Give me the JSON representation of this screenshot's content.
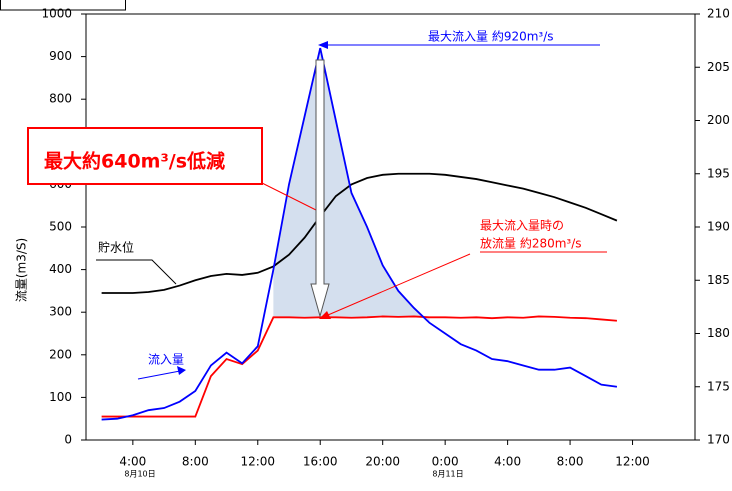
{
  "chart_data": {
    "type": "line",
    "y_label": "流量(m3/S)",
    "x": [
      2,
      3,
      4,
      5,
      6,
      7,
      8,
      9,
      10,
      11,
      12,
      13,
      14,
      15,
      16,
      17,
      18,
      19,
      20,
      21,
      22,
      23,
      24,
      25,
      26,
      27,
      28,
      29,
      30,
      31,
      32,
      33,
      34,
      35
    ],
    "xlim": [
      1,
      40
    ],
    "xticks": [
      {
        "value": 4,
        "label": "4:00"
      },
      {
        "value": 8,
        "label": "8:00"
      },
      {
        "value": 12,
        "label": "12:00"
      },
      {
        "value": 16,
        "label": "16:00"
      },
      {
        "value": 20,
        "label": "20:00"
      },
      {
        "value": 24,
        "label": "0:00"
      },
      {
        "value": 28,
        "label": "4:00"
      },
      {
        "value": 32,
        "label": "8:00"
      },
      {
        "value": 36,
        "label": "12:00"
      }
    ],
    "ylim": [
      0,
      1000
    ],
    "yticks": [
      0,
      100,
      200,
      300,
      400,
      500,
      600,
      700,
      800,
      900,
      1000
    ],
    "y2lim": [
      170,
      210
    ],
    "y2ticks": [
      170,
      175,
      180,
      185,
      190,
      195,
      200,
      205,
      210
    ],
    "series": [
      {
        "name": "流入量",
        "color": "#0000ff",
        "values": [
          48,
          50,
          58,
          70,
          75,
          90,
          115,
          175,
          205,
          180,
          220,
          400,
          600,
          760,
          920,
          750,
          580,
          500,
          410,
          350,
          310,
          275,
          250,
          225,
          210,
          190,
          185,
          175,
          165,
          165,
          170,
          150,
          130,
          125
        ]
      },
      {
        "color": "#ff0000",
        "values": [
          55,
          55,
          55,
          55,
          55,
          55,
          55,
          150,
          190,
          178,
          210,
          288,
          288,
          287,
          288,
          288,
          287,
          288,
          290,
          289,
          290,
          288,
          288,
          287,
          288,
          286,
          288,
          287,
          290,
          289,
          287,
          286,
          283,
          280
        ]
      },
      {
        "name": "貯水位",
        "color": "#000000",
        "axis": "y2",
        "values": [
          183.8,
          183.8,
          183.8,
          183.9,
          184.1,
          184.5,
          185.0,
          185.4,
          185.6,
          185.5,
          185.7,
          186.3,
          187.4,
          189.0,
          191.0,
          192.9,
          194.0,
          194.6,
          194.9,
          195.0,
          195.0,
          195.0,
          194.9,
          194.7,
          194.5,
          194.2,
          193.9,
          193.6,
          193.2,
          192.8,
          192.3,
          191.8,
          191.2,
          190.6
        ]
      }
    ],
    "annotations": [
      "最大流入量 約920m³/s",
      "最大約640m³/s低減",
      "最大流入量時の",
      "放流量 約280m³/s",
      "8月10日",
      "8月11日"
    ]
  }
}
